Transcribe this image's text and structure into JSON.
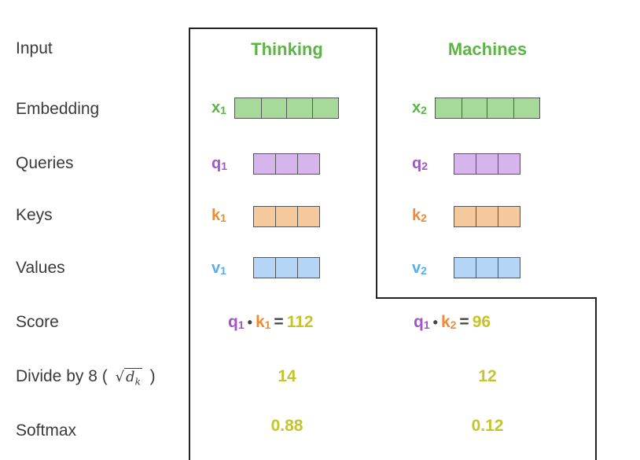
{
  "rows": {
    "input": "Input",
    "embedding": "Embedding",
    "queries": "Queries",
    "keys": "Keys",
    "values": "Values",
    "score": "Score",
    "divide_prefix": "Divide by 8 (",
    "divide_sqrt": "d",
    "divide_sub": "k",
    "divide_suffix": ")",
    "softmax": "Softmax"
  },
  "words": [
    "Thinking",
    "Machines"
  ],
  "symbols": {
    "x1": "x",
    "x1_sub": "1",
    "x2": "x",
    "x2_sub": "2",
    "q1": "q",
    "q1_sub": "1",
    "q2": "q",
    "q2_sub": "2",
    "k1": "k",
    "k1_sub": "1",
    "k2": "k",
    "k2_sub": "2",
    "v1": "v",
    "v1_sub": "1",
    "v2": "v",
    "v2_sub": "2"
  },
  "scores": [
    {
      "q": "q",
      "q_sub": "1",
      "k": "k",
      "k_sub": "1",
      "value": "112"
    },
    {
      "q": "q",
      "q_sub": "1",
      "k": "k",
      "k_sub": "2",
      "value": "96"
    }
  ],
  "divided": [
    "14",
    "12"
  ],
  "softmax": [
    "0.88",
    "0.12"
  ],
  "colors": {
    "embedding": "#a6d99a",
    "query": "#d6b4ec",
    "key": "#f6c99c",
    "value": "#b4d5f6",
    "word": "#5bb445",
    "number": "#c6c42c"
  }
}
